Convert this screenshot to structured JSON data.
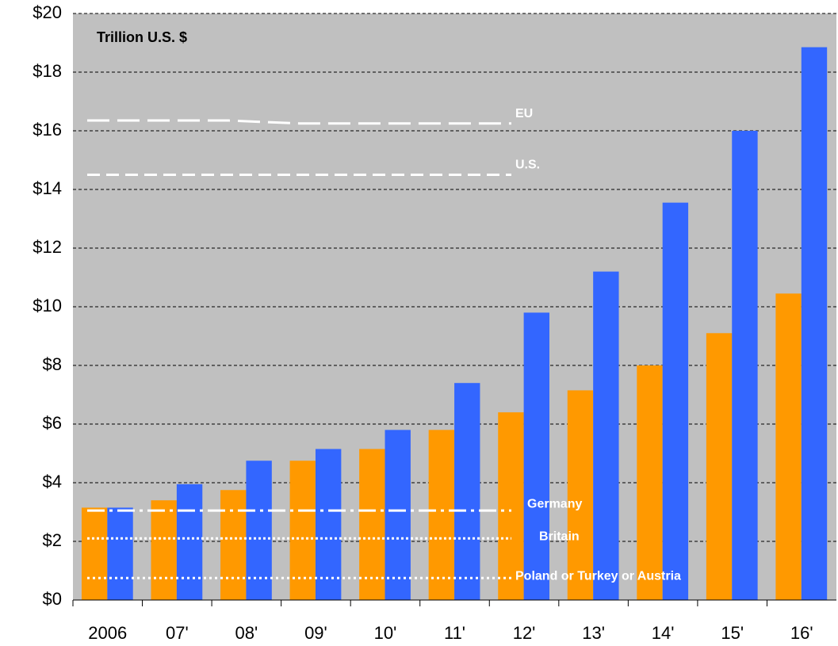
{
  "chart_data": {
    "type": "bar",
    "axis_label": "Trillion U.S. $",
    "categories": [
      "2006",
      "07'",
      "08'",
      "09'",
      "10'",
      "11'",
      "12'",
      "13'",
      "14'",
      "15'",
      "16'"
    ],
    "series": [
      {
        "color": "#ff9900",
        "values": [
          3.15,
          3.4,
          3.75,
          4.75,
          5.15,
          5.8,
          6.4,
          7.15,
          8.0,
          9.1,
          10.45
        ]
      },
      {
        "color": "#3366ff",
        "values": [
          3.15,
          3.95,
          4.75,
          5.15,
          5.8,
          7.4,
          9.8,
          11.2,
          13.55,
          16.0,
          18.85
        ]
      }
    ],
    "ylim": [
      0,
      20
    ],
    "yticks": [
      {
        "value": 0,
        "label": "$0"
      },
      {
        "value": 2,
        "label": "$2"
      },
      {
        "value": 4,
        "label": "$4"
      },
      {
        "value": 6,
        "label": "$6"
      },
      {
        "value": 8,
        "label": "$8"
      },
      {
        "value": 10,
        "label": "$10"
      },
      {
        "value": 12,
        "label": "$12"
      },
      {
        "value": 14,
        "label": "$14"
      },
      {
        "value": 16,
        "label": "$16"
      },
      {
        "value": 18,
        "label": "$18"
      },
      {
        "value": 20,
        "label": "$20"
      }
    ],
    "grid": true,
    "reference_lines": [
      {
        "label": "EU",
        "values": [
          16.35,
          16.35,
          16.35,
          16.25,
          16.25,
          16.25,
          16.25
        ],
        "dash": "28 10"
      },
      {
        "label": "U.S.",
        "values": [
          14.5
        ],
        "dash": "16 8"
      },
      {
        "label": "Germany",
        "values": [
          3.05
        ],
        "dash": "22 6 4 6"
      },
      {
        "label": "Britain",
        "values": [
          2.1
        ],
        "dash": "3 3"
      },
      {
        "label": "Poland or Turkey or Austria",
        "values": [
          0.75
        ],
        "dash": "3 4"
      }
    ]
  }
}
